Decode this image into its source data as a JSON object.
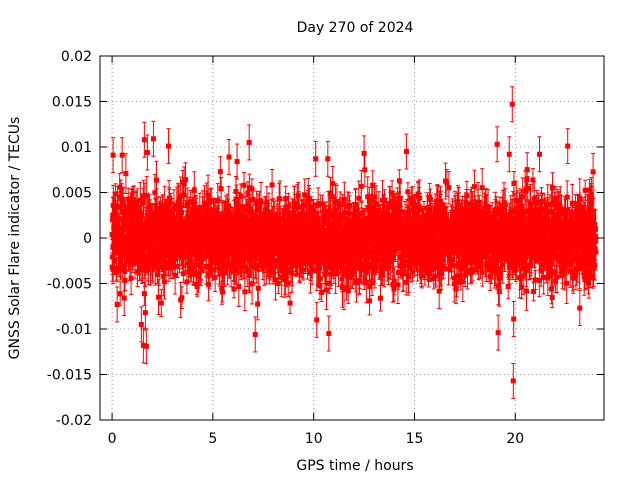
{
  "chart_data": {
    "type": "scatter",
    "title": "Day 270 of 2024",
    "xlabel": "GPS time / hours",
    "ylabel": "GNSS Solar Flare indicator / TECUs",
    "xlim": [
      -0.6,
      24.4
    ],
    "ylim": [
      -0.02,
      0.02
    ],
    "x_ticks": [
      0,
      5,
      10,
      15,
      20
    ],
    "x_tick_labels": [
      "0",
      "5",
      "10",
      "15",
      "20"
    ],
    "y_ticks": [
      0.02,
      0.015,
      0.01,
      0.005,
      0,
      -0.005,
      -0.01,
      -0.015,
      -0.02
    ],
    "y_tick_labels": [
      "0.02",
      "0.015",
      "0.01",
      "0.005",
      "0",
      "-0.005",
      "-0.01",
      "-0.015",
      "-0.02"
    ],
    "grid": true,
    "series": [
      {
        "name": "solar flare indicator",
        "color": "#ff0000",
        "marker": "square",
        "error_bars": true,
        "x_start": 0.0,
        "x_end": 24.0,
        "n_points": 2880,
        "typical_std": 0.0022,
        "typical_error": 0.0016,
        "extreme_points": [
          {
            "x": 0.05,
            "y": 0.0091
          },
          {
            "x": 0.25,
            "y": -0.0073
          },
          {
            "x": 0.5,
            "y": 0.0091
          },
          {
            "x": 0.6,
            "y": -0.0066
          },
          {
            "x": 1.45,
            "y": -0.0095
          },
          {
            "x": 1.55,
            "y": -0.0118
          },
          {
            "x": 1.6,
            "y": 0.0108
          },
          {
            "x": 1.65,
            "y": -0.0082
          },
          {
            "x": 1.7,
            "y": -0.0119
          },
          {
            "x": 1.75,
            "y": 0.0094
          },
          {
            "x": 2.05,
            "y": 0.0109
          },
          {
            "x": 2.3,
            "y": -0.0065
          },
          {
            "x": 2.8,
            "y": 0.0101
          },
          {
            "x": 3.4,
            "y": -0.0068
          },
          {
            "x": 5.8,
            "y": 0.0089
          },
          {
            "x": 6.2,
            "y": 0.0084
          },
          {
            "x": 6.8,
            "y": 0.0105
          },
          {
            "x": 7.1,
            "y": -0.0106
          },
          {
            "x": 10.1,
            "y": 0.0087
          },
          {
            "x": 10.15,
            "y": -0.009
          },
          {
            "x": 10.7,
            "y": 0.0087
          },
          {
            "x": 10.75,
            "y": -0.0105
          },
          {
            "x": 12.5,
            "y": 0.0093
          },
          {
            "x": 14.6,
            "y": 0.0095
          },
          {
            "x": 19.1,
            "y": 0.0103
          },
          {
            "x": 19.15,
            "y": -0.0104
          },
          {
            "x": 19.7,
            "y": 0.0092
          },
          {
            "x": 19.85,
            "y": 0.0147
          },
          {
            "x": 19.9,
            "y": -0.0157
          },
          {
            "x": 19.92,
            "y": -0.0089
          },
          {
            "x": 21.2,
            "y": 0.0092
          },
          {
            "x": 22.6,
            "y": 0.0101
          },
          {
            "x": 23.2,
            "y": -0.0077
          }
        ]
      }
    ]
  }
}
